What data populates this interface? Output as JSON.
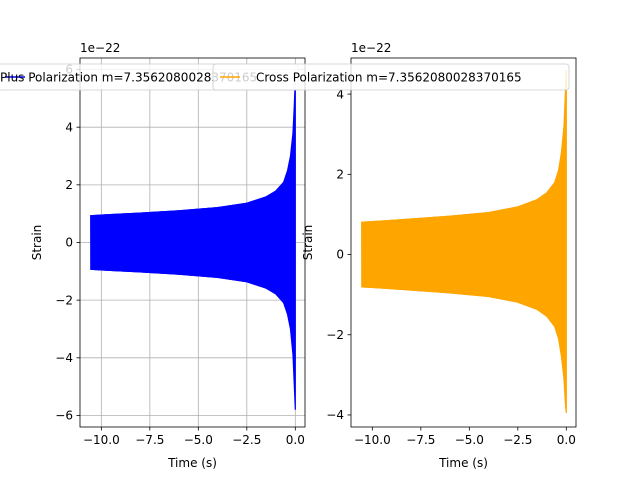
{
  "chart_data": [
    {
      "type": "area",
      "xlabel": "Time (s)",
      "ylabel": "Strain",
      "offset_text": "1e−22",
      "legend": {
        "label": "Plus Polarization m=7.3562080028370165",
        "placement": "upper center",
        "color": "#0000ff"
      },
      "grid": true,
      "color": "#0000ff",
      "xlim": [
        -11.1,
        0.5
      ],
      "ylim": [
        -6.4,
        6.4
      ],
      "xticks": [
        -10.0,
        -7.5,
        -5.0,
        -2.5,
        0.0
      ],
      "xtick_labels": [
        "−10.0",
        "−7.5",
        "−5.0",
        "−2.5",
        "0.0"
      ],
      "yticks": [
        -6,
        -4,
        -2,
        0,
        2,
        4,
        6
      ],
      "ytick_labels": [
        "−6",
        "−4",
        "−2",
        "0",
        "2",
        "4",
        "6"
      ],
      "t_start": -10.55,
      "t_end": 0.0,
      "envelope": {
        "t": [
          -10.55,
          -9.5,
          -8.0,
          -6.0,
          -4.0,
          -2.5,
          -1.5,
          -1.0,
          -0.6,
          -0.4,
          -0.25,
          -0.12,
          -0.05,
          0.0
        ],
        "upper": [
          0.95,
          0.99,
          1.04,
          1.12,
          1.23,
          1.38,
          1.6,
          1.8,
          2.1,
          2.5,
          3.0,
          3.8,
          4.8,
          5.7
        ],
        "lower": [
          -0.95,
          -0.99,
          -1.04,
          -1.12,
          -1.23,
          -1.38,
          -1.6,
          -1.8,
          -2.1,
          -2.5,
          -3.0,
          -3.9,
          -5.0,
          -5.8
        ]
      }
    },
    {
      "type": "area",
      "xlabel": "Time (s)",
      "ylabel": "Strain",
      "offset_text": "1e−22",
      "legend": {
        "label": "Cross Polarization m=7.3562080028370165",
        "placement": "upper center",
        "color": "#ffa500"
      },
      "grid": false,
      "color": "#ffa500",
      "xlim": [
        -11.1,
        0.5
      ],
      "ylim": [
        -4.3,
        4.9
      ],
      "xticks": [
        -10.0,
        -7.5,
        -5.0,
        -2.5,
        0.0
      ],
      "xtick_labels": [
        "−10.0",
        "−7.5",
        "−5.0",
        "−2.5",
        "0.0"
      ],
      "yticks": [
        -4,
        -2,
        0,
        2,
        4
      ],
      "ytick_labels": [
        "−4",
        "−2",
        "0",
        "2",
        "4"
      ],
      "t_start": -10.55,
      "t_end": 0.0,
      "envelope": {
        "t": [
          -10.55,
          -9.5,
          -8.0,
          -6.0,
          -4.0,
          -2.5,
          -1.5,
          -1.0,
          -0.6,
          -0.4,
          -0.25,
          -0.12,
          -0.05,
          0.0
        ],
        "upper": [
          0.82,
          0.85,
          0.9,
          0.97,
          1.06,
          1.2,
          1.38,
          1.55,
          1.8,
          2.1,
          2.55,
          3.2,
          4.0,
          4.6
        ],
        "lower": [
          -0.82,
          -0.85,
          -0.9,
          -0.97,
          -1.06,
          -1.2,
          -1.38,
          -1.55,
          -1.8,
          -2.1,
          -2.55,
          -3.1,
          -3.7,
          -3.95
        ]
      }
    }
  ]
}
